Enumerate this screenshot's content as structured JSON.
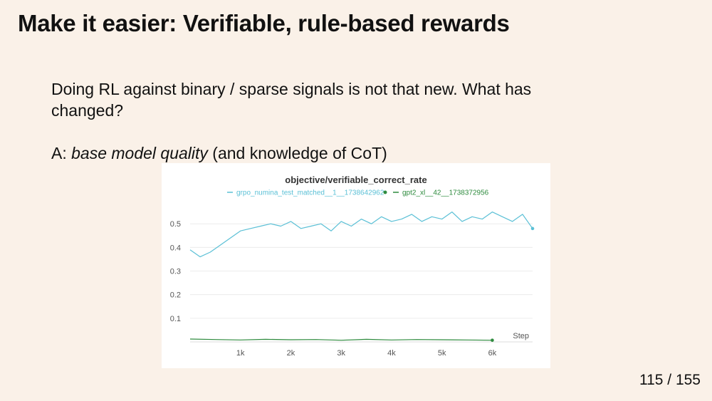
{
  "slide": {
    "title": "Make it easier: Verifiable, rule-based rewards",
    "paragraph1": "Doing RL against binary / sparse signals is not that new. What has changed?",
    "answer_prefix": "A: ",
    "answer_emphasis": "base model quality",
    "answer_suffix": " (and knowledge of CoT)",
    "page_number": "115 / 155"
  },
  "chart_data": {
    "type": "line",
    "title": "objective/verifiable_correct_rate",
    "xlabel": "Step",
    "ylabel": "",
    "x_tick_labels": [
      "1k",
      "2k",
      "3k",
      "4k",
      "5k",
      "6k"
    ],
    "x_ticks": [
      1000,
      2000,
      3000,
      4000,
      5000,
      6000
    ],
    "y_tick_labels": [
      "0.1",
      "0.2",
      "0.3",
      "0.4",
      "0.5"
    ],
    "y_ticks": [
      0.1,
      0.2,
      0.3,
      0.4,
      0.5
    ],
    "xlim": [
      0,
      6800
    ],
    "ylim": [
      0,
      0.57
    ],
    "grid": true,
    "legend_position": "top",
    "series": [
      {
        "name": "grpo_numina_test_matched__1__1738642962",
        "color": "#5bc0d6",
        "x": [
          0,
          200,
          400,
          600,
          800,
          1000,
          1200,
          1400,
          1600,
          1800,
          2000,
          2200,
          2400,
          2600,
          2800,
          3000,
          3200,
          3400,
          3600,
          3800,
          4000,
          4200,
          4400,
          4600,
          4800,
          5000,
          5200,
          5400,
          5600,
          5800,
          6000,
          6200,
          6400,
          6600,
          6800
        ],
        "values": [
          0.39,
          0.36,
          0.38,
          0.41,
          0.44,
          0.47,
          0.48,
          0.49,
          0.5,
          0.49,
          0.51,
          0.48,
          0.49,
          0.5,
          0.47,
          0.51,
          0.49,
          0.52,
          0.5,
          0.53,
          0.51,
          0.52,
          0.54,
          0.51,
          0.53,
          0.52,
          0.55,
          0.51,
          0.53,
          0.52,
          0.55,
          0.53,
          0.51,
          0.54,
          0.48
        ]
      },
      {
        "name": "gpt2_xl__42__1738372956",
        "color": "#2e8b3e",
        "x": [
          0,
          500,
          1000,
          1500,
          2000,
          2500,
          3000,
          3500,
          4000,
          4500,
          5000,
          5500,
          6000
        ],
        "values": [
          0.012,
          0.01,
          0.008,
          0.011,
          0.009,
          0.01,
          0.007,
          0.011,
          0.008,
          0.01,
          0.009,
          0.008,
          0.007
        ]
      }
    ]
  }
}
